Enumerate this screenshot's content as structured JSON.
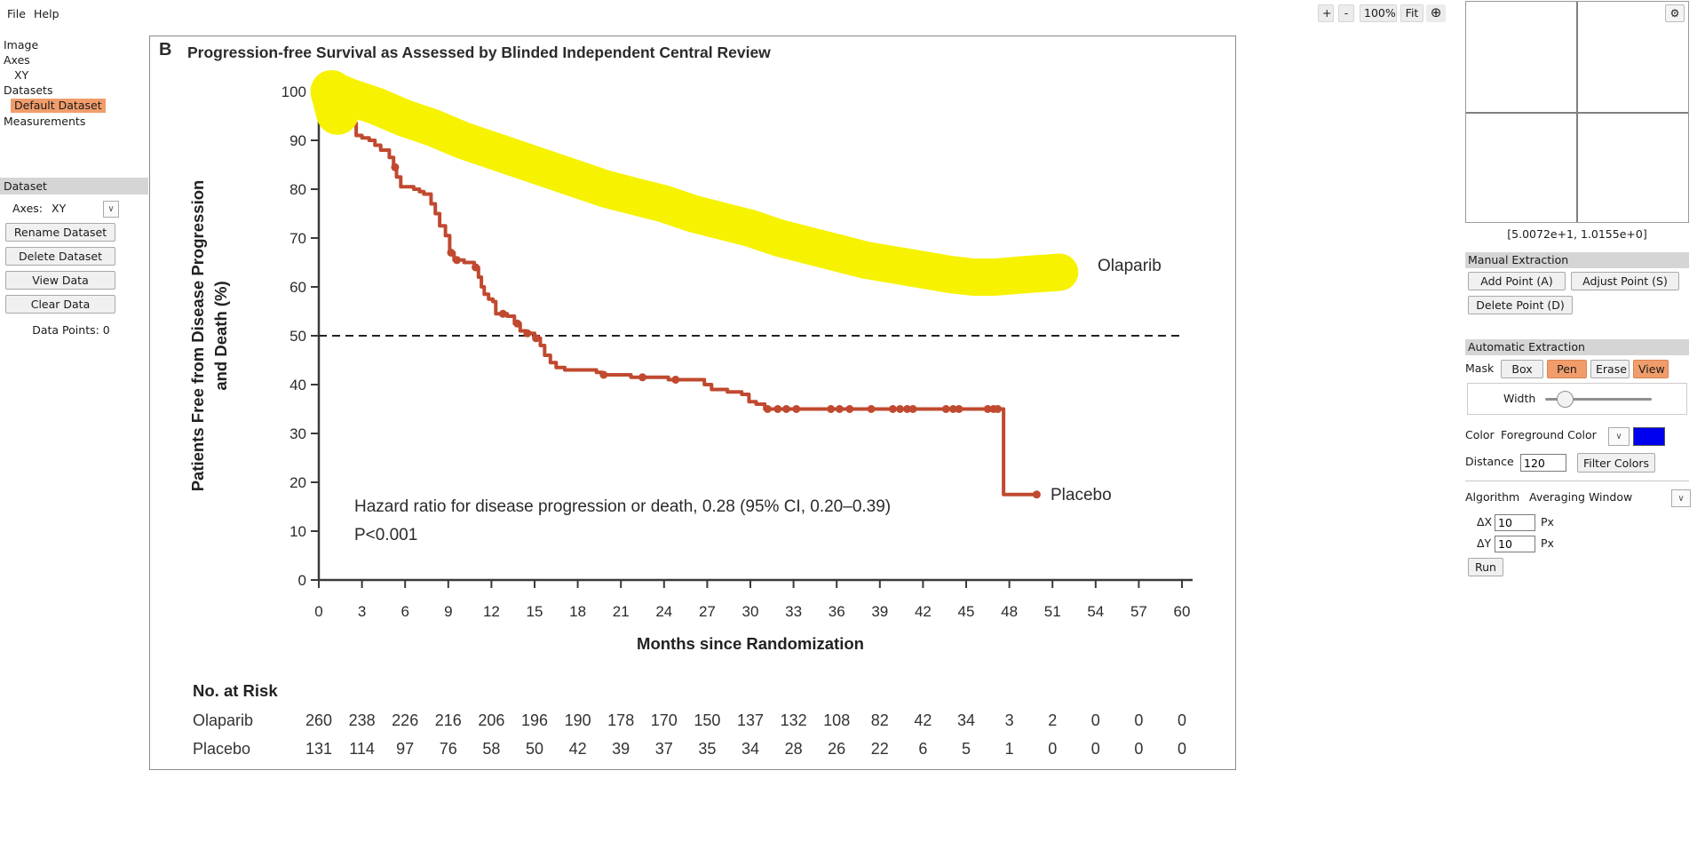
{
  "menubar": {
    "file": "File",
    "help": "Help"
  },
  "icons": {
    "crosshair": "⊕",
    "gear": "⚙",
    "chevron": "∨"
  },
  "zoom_toolbar": {
    "zoom_in": "+",
    "zoom_out": "-",
    "zoom_level": "100%",
    "fit": "Fit"
  },
  "sidebar": {
    "tree": [
      {
        "label": "Image"
      },
      {
        "label": "Axes"
      },
      {
        "label": "XY"
      },
      {
        "label": "Datasets"
      },
      {
        "label": "Default Dataset",
        "selected": true
      },
      {
        "label": "Measurements"
      }
    ],
    "dataset_panel": {
      "header": "Dataset",
      "axes_label": "Axes:",
      "axes_value": "XY",
      "rename": "Rename Dataset",
      "delete": "Delete Dataset",
      "view": "View Data",
      "clear": "Clear Data",
      "data_points": "Data Points: 0"
    }
  },
  "right_panel": {
    "coordinates": "[5.0072e+1, 1.0155e+0]",
    "manual_extraction": {
      "header": "Manual Extraction",
      "add_point": "Add Point (A)",
      "adjust_point": "Adjust Point (S)",
      "delete_point": "Delete Point (D)"
    },
    "automatic_extraction": {
      "header": "Automatic Extraction",
      "mask_label": "Mask",
      "box": "Box",
      "pen": "Pen",
      "erase": "Erase",
      "view": "View",
      "width_label": "Width",
      "color_label": "Color",
      "color_value": "Foreground Color",
      "swatch_color": "#0000ee",
      "distance_label": "Distance",
      "distance_value": "120",
      "filter_colors": "Filter Colors",
      "algorithm_label": "Algorithm",
      "algorithm_value": "Averaging Window",
      "delta_x_label": "ΔX",
      "delta_x_value": "10",
      "delta_x_unit": "Px",
      "delta_y_label": "ΔY",
      "delta_y_value": "10",
      "delta_y_unit": "Px",
      "run": "Run"
    }
  },
  "chart_data": {
    "type": "line",
    "panel_label": "B",
    "title": "Progression-free Survival as Assessed by Blinded Independent Central Review",
    "xlabel": "Months since Randomization",
    "ylabel_line1": "Patients Free from Disease Progression",
    "ylabel_line2": "and Death (%)",
    "xlim": [
      0,
      60
    ],
    "ylim": [
      0,
      100
    ],
    "xtick_step": 3,
    "ytick_step": 10,
    "reference_line_y": 50,
    "annotations": {
      "hr_line": "Hazard ratio for disease progression or death, 0.28 (95% CI, 0.20–0.39)",
      "p_line": "P<0.001"
    },
    "curve_labels": {
      "olaparib": "Olaparib",
      "placebo": "Placebo"
    },
    "curve_color": "#c0492f",
    "series": [
      {
        "name": "Olaparib",
        "note": "curve occluded by yellow pen mask in screenshot",
        "step_points": [
          [
            0,
            100
          ],
          [
            3,
            97.5
          ],
          [
            6,
            94.5
          ],
          [
            9,
            91.5
          ],
          [
            12,
            88.5
          ],
          [
            15,
            85.5
          ],
          [
            18,
            82.5
          ],
          [
            21,
            79.5
          ],
          [
            24,
            77
          ],
          [
            27,
            74.5
          ],
          [
            30,
            72.5
          ],
          [
            33,
            70.5
          ],
          [
            36,
            68.5
          ],
          [
            39,
            66.5
          ],
          [
            42,
            64.5
          ],
          [
            45,
            63
          ],
          [
            48,
            61.5
          ],
          [
            51,
            60.5
          ]
        ]
      },
      {
        "name": "Placebo",
        "step_points": [
          [
            2.3,
            93.5
          ],
          [
            2.6,
            91
          ],
          [
            3.0,
            90.5
          ],
          [
            3.5,
            90
          ],
          [
            3.9,
            89
          ],
          [
            4.3,
            88
          ],
          [
            4.9,
            86.5
          ],
          [
            5.2,
            84.5
          ],
          [
            5.4,
            82.5
          ],
          [
            5.7,
            80.5
          ],
          [
            6.6,
            80
          ],
          [
            7.0,
            79.5
          ],
          [
            7.3,
            79
          ],
          [
            7.8,
            77
          ],
          [
            8.1,
            75
          ],
          [
            8.4,
            72.5
          ],
          [
            8.8,
            70.5
          ],
          [
            9.1,
            67
          ],
          [
            9.4,
            65.5
          ],
          [
            10.1,
            65
          ],
          [
            10.8,
            64
          ],
          [
            11.1,
            62
          ],
          [
            11.3,
            60
          ],
          [
            11.5,
            58.5
          ],
          [
            11.8,
            57.5
          ],
          [
            12.1,
            57
          ],
          [
            12.3,
            54.5
          ],
          [
            13.1,
            54
          ],
          [
            13.6,
            52.5
          ],
          [
            14.0,
            51
          ],
          [
            14.4,
            50.5
          ],
          [
            15.0,
            49.5
          ],
          [
            15.4,
            48
          ],
          [
            15.7,
            46
          ],
          [
            16.1,
            44.5
          ],
          [
            16.5,
            43.5
          ],
          [
            17.1,
            43
          ],
          [
            18.9,
            43
          ],
          [
            19.3,
            42.5
          ],
          [
            19.7,
            42
          ],
          [
            21.3,
            42
          ],
          [
            21.7,
            41.5
          ],
          [
            24.0,
            41.5
          ],
          [
            24.3,
            41
          ],
          [
            26.4,
            41
          ],
          [
            26.8,
            40
          ],
          [
            27.3,
            39
          ],
          [
            28.4,
            38.5
          ],
          [
            29.4,
            38
          ],
          [
            29.9,
            36.5
          ],
          [
            30.4,
            36
          ],
          [
            31.0,
            35
          ],
          [
            47.4,
            35
          ],
          [
            47.6,
            17.5
          ],
          [
            49.9,
            17.5
          ]
        ],
        "censor_marks": [
          [
            2.4,
            93.5
          ],
          [
            5.3,
            84.5
          ],
          [
            9.2,
            67
          ],
          [
            9.6,
            65.5
          ],
          [
            10.9,
            64
          ],
          [
            12.8,
            54.5
          ],
          [
            13.8,
            52.5
          ],
          [
            14.5,
            50.5
          ],
          [
            15.1,
            49.5
          ],
          [
            19.8,
            42
          ],
          [
            22.5,
            41.5
          ],
          [
            24.8,
            41
          ],
          [
            31.2,
            35
          ],
          [
            31.9,
            35
          ],
          [
            32.5,
            35
          ],
          [
            33.2,
            35
          ],
          [
            35.6,
            35
          ],
          [
            36.2,
            35
          ],
          [
            36.9,
            35
          ],
          [
            38.4,
            35
          ],
          [
            39.9,
            35
          ],
          [
            40.4,
            35
          ],
          [
            40.9,
            35
          ],
          [
            41.3,
            35
          ],
          [
            43.6,
            35
          ],
          [
            44.1,
            35
          ],
          [
            44.5,
            35
          ],
          [
            46.5,
            35
          ],
          [
            46.9,
            35
          ],
          [
            47.2,
            35
          ],
          [
            49.9,
            17.5
          ]
        ]
      }
    ],
    "mask_overlay": {
      "color": "#f6f200",
      "tool": "pen highlight over Olaparib curve",
      "path": [
        [
          0.8,
          100.5
        ],
        [
          2,
          99
        ],
        [
          4,
          97
        ],
        [
          6,
          94.5
        ],
        [
          8,
          92.5
        ],
        [
          10,
          90
        ],
        [
          12,
          88
        ],
        [
          14,
          86
        ],
        [
          16,
          84
        ],
        [
          18,
          82
        ],
        [
          20,
          80
        ],
        [
          22,
          78.5
        ],
        [
          24,
          77
        ],
        [
          26,
          75
        ],
        [
          28,
          73.5
        ],
        [
          30,
          72
        ],
        [
          32,
          70
        ],
        [
          34,
          68.5
        ],
        [
          36,
          67
        ],
        [
          38,
          65.5
        ],
        [
          40,
          64.5
        ],
        [
          42,
          63.5
        ],
        [
          44,
          62.5
        ],
        [
          45.5,
          62
        ],
        [
          47,
          62
        ],
        [
          49,
          62.5
        ],
        [
          51.5,
          63
        ]
      ]
    },
    "risk_table": {
      "header": "No. at Risk",
      "months": [
        0,
        3,
        6,
        9,
        12,
        15,
        18,
        21,
        24,
        27,
        30,
        33,
        36,
        39,
        42,
        45,
        48,
        51,
        54,
        57,
        60
      ],
      "rows": [
        {
          "name": "Olaparib",
          "values": [
            260,
            238,
            226,
            216,
            206,
            196,
            190,
            178,
            170,
            150,
            137,
            132,
            108,
            82,
            42,
            34,
            3,
            2,
            0,
            0,
            0
          ]
        },
        {
          "name": "Placebo",
          "values": [
            131,
            114,
            97,
            76,
            58,
            50,
            42,
            39,
            37,
            35,
            34,
            28,
            26,
            22,
            6,
            5,
            1,
            0,
            0,
            0,
            0
          ]
        }
      ]
    }
  }
}
